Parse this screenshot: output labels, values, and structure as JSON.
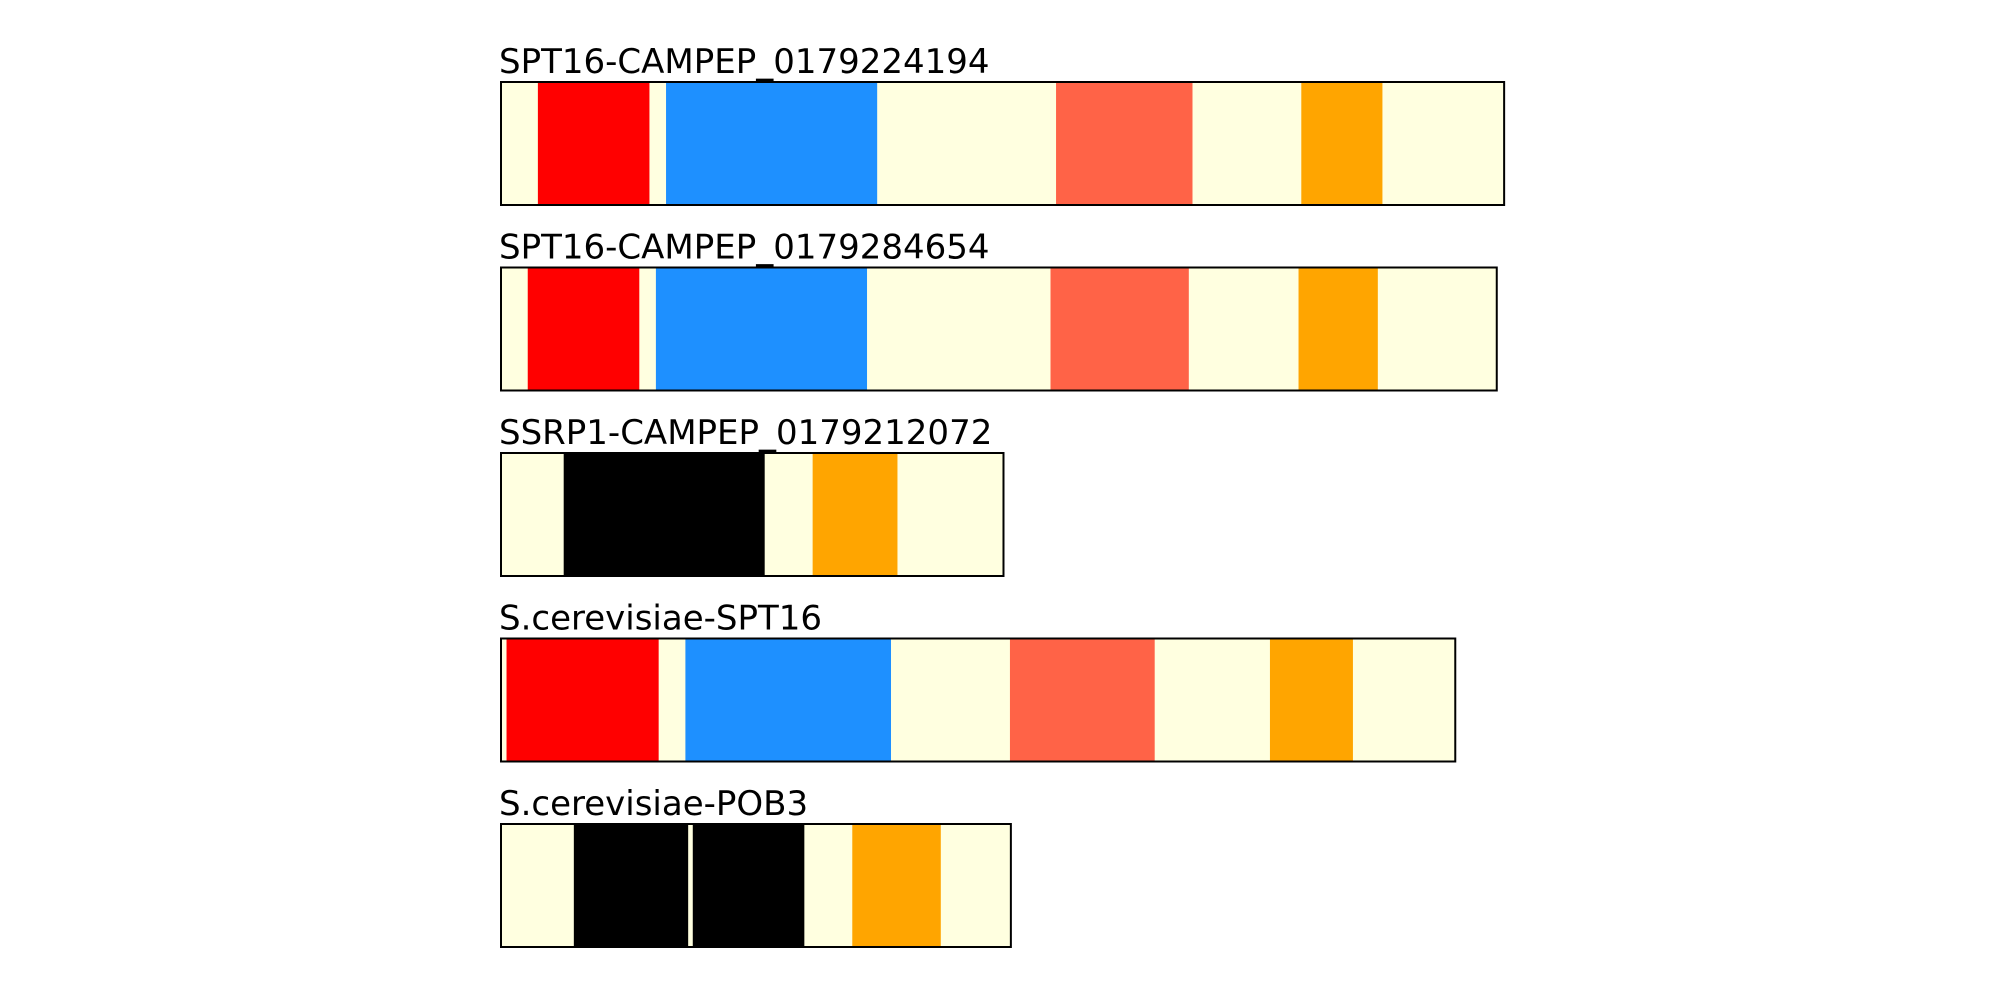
{
  "proteins": [
    {
      "name": "SPT16-CAMPEP_0179224194",
      "length": 1088,
      "domains": [
        {
          "start": 40,
          "end": 161,
          "color": "#ff0000"
        },
        {
          "start": 179,
          "end": 408,
          "color": "#1e90ff"
        },
        {
          "start": 602,
          "end": 750,
          "color": "#ff6347"
        },
        {
          "start": 868,
          "end": 956,
          "color": "#ffa500"
        }
      ]
    },
    {
      "name": "SPT16-CAMPEP_0179284654",
      "length": 1080,
      "domains": [
        {
          "start": 29,
          "end": 150,
          "color": "#ff0000"
        },
        {
          "start": 168,
          "end": 397,
          "color": "#1e90ff"
        },
        {
          "start": 596,
          "end": 746,
          "color": "#ff6347"
        },
        {
          "start": 865,
          "end": 951,
          "color": "#ffa500"
        }
      ]
    },
    {
      "name": "SSRP1-CAMPEP_0179212072",
      "length": 545,
      "domains": [
        {
          "start": 68,
          "end": 286,
          "color": "#000000"
        },
        {
          "start": 338,
          "end": 430,
          "color": "#ffa500"
        }
      ]
    },
    {
      "name": "S.cerevisiae-SPT16",
      "length": 1035,
      "domains": [
        {
          "start": 6,
          "end": 171,
          "color": "#ff0000"
        },
        {
          "start": 200,
          "end": 423,
          "color": "#1e90ff"
        },
        {
          "start": 552,
          "end": 709,
          "color": "#ff6347"
        },
        {
          "start": 834,
          "end": 924,
          "color": "#ffa500"
        }
      ]
    },
    {
      "name": "S.cerevisiae-POB3",
      "length": 553,
      "domains": [
        {
          "start": 79,
          "end": 203,
          "color": "#000000"
        },
        {
          "start": 208,
          "end": 329,
          "color": "#000000"
        },
        {
          "start": 381,
          "end": 477,
          "color": "#ffa500"
        }
      ]
    }
  ],
  "background_color": "#ffffe0"
}
